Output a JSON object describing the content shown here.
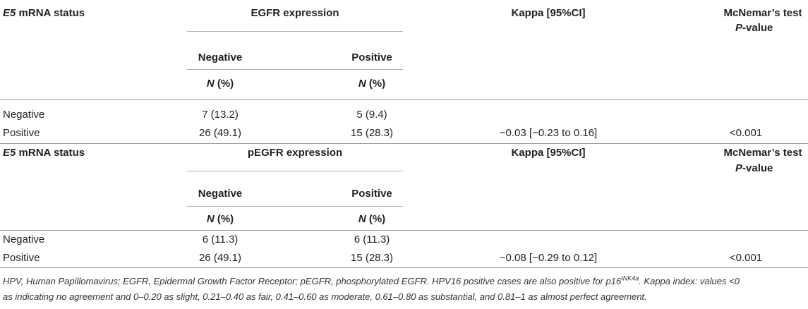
{
  "sections": [
    {
      "status_em": "E5",
      "status_rest": " mRNA status",
      "group_header": "EGFR expression",
      "kappa_header": "Kappa [95%CI]",
      "mcnemar_line1": "McNemar’s test",
      "mcnemar_p": "P",
      "mcnemar_rest": "-value",
      "col_negative": "Negative",
      "col_positive": "Positive",
      "n_em": "N",
      "n_rest": " (%)",
      "rows": [
        {
          "label": "Negative",
          "neg": "7 (13.2)",
          "pos": "5 (9.4)",
          "kappa": "",
          "p": ""
        },
        {
          "label": "Positive",
          "neg": "26 (49.1)",
          "pos": "15 (28.3)",
          "kappa": "−0.03 [−0.23 to 0.16]",
          "p": "<0.001"
        }
      ]
    },
    {
      "status_em": "E5",
      "status_rest": " mRNA status",
      "group_header": "pEGFR expression",
      "kappa_header": "Kappa [95%CI]",
      "mcnemar_line1": "McNemar’s test",
      "mcnemar_p": "P",
      "mcnemar_rest": "-value",
      "col_negative": "Negative",
      "col_positive": "Positive",
      "n_em": "N",
      "n_rest": " (%)",
      "rows": [
        {
          "label": "Negative",
          "neg": "6 (11.3)",
          "pos": "6 (11.3)",
          "kappa": "",
          "p": ""
        },
        {
          "label": "Positive",
          "neg": "26 (49.1)",
          "pos": "15 (28.3)",
          "kappa": "−0.08 [−0.29 to 0.12]",
          "p": "<0.001"
        }
      ]
    }
  ],
  "footnote": {
    "part1": "HPV, Human Papillomavirus; EGFR, Epidermal Growth Factor Receptor; pEGFR, phosphorylated EGFR. HPV16 positive cases are also positive for p16",
    "sup": "INK4a",
    "part2": ". Kappa index: values <0",
    "line2": "as indicating no agreement and 0–0.20 as slight, 0.21–0.40 as fair, 0.41–0.60 as moderate, 0.61–0.80 as substantial, and 0.81–1 as almost perfect agreement."
  }
}
